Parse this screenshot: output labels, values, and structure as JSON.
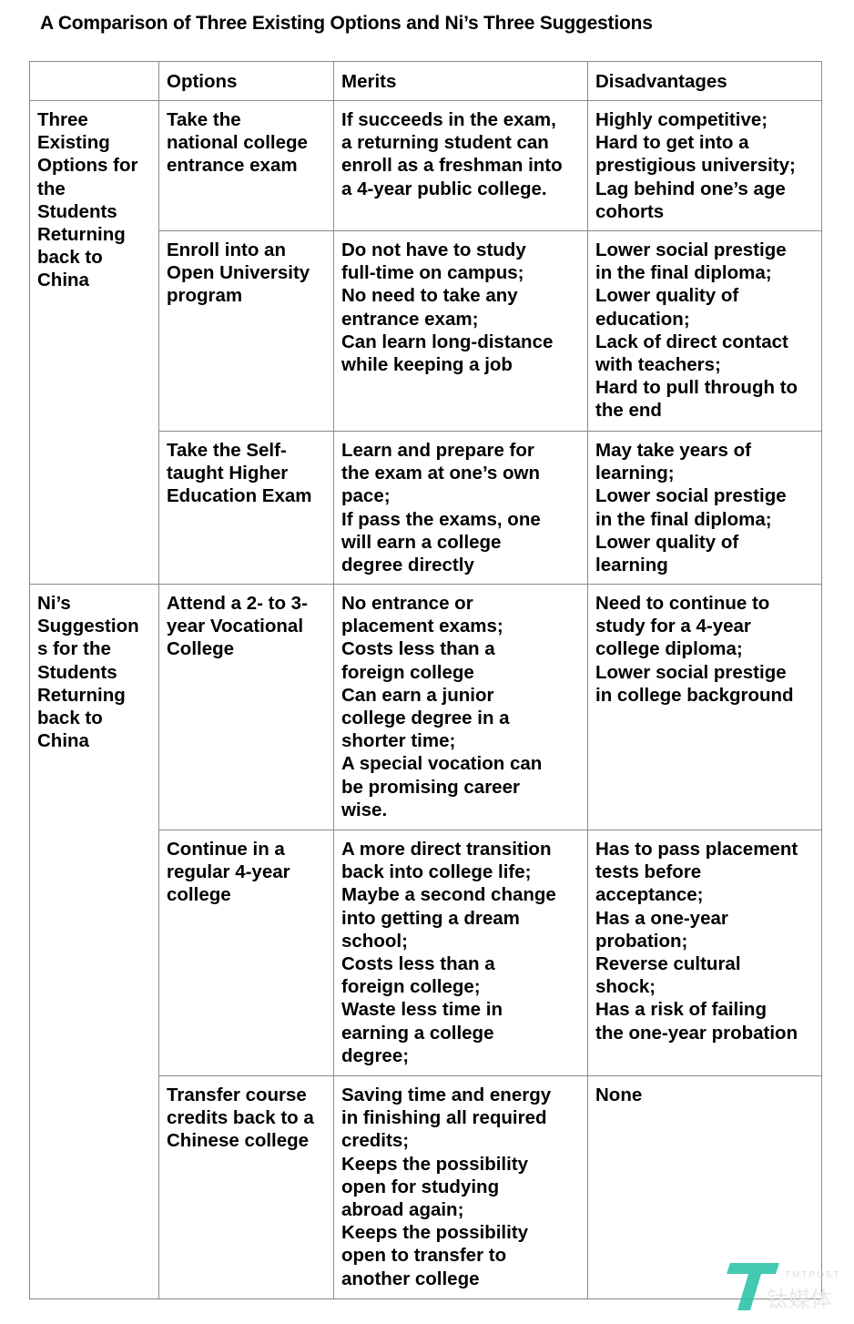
{
  "title": "A Comparison of Three Existing Options and Ni’s Three Suggestions",
  "headers": [
    "",
    "Options",
    "Merits",
    "Disadvantages"
  ],
  "groups": [
    {
      "label": [
        "Three",
        "Existing",
        "Options for",
        "the",
        "Students",
        "Returning",
        "back to",
        "China"
      ]
    },
    {
      "label": [
        "Ni’s",
        "Suggestion",
        "s for the",
        "Students",
        "Returning",
        "back to",
        "China"
      ]
    }
  ],
  "rows": [
    {
      "option": [
        "Take the",
        "national college",
        "entrance exam"
      ],
      "merits": [
        "If succeeds in the exam,",
        "a returning student can",
        "enroll as a freshman into",
        "a 4-year public college."
      ],
      "disadvantages": [
        "Highly competitive;",
        "Hard to get into a",
        "prestigious university;",
        "Lag behind one’s age",
        "cohorts"
      ]
    },
    {
      "option": [
        "Enroll into an",
        "Open University",
        "program"
      ],
      "merits": [
        "Do not have to study",
        "full-time on campus;",
        "No need to take any",
        "entrance exam;",
        "Can learn long-distance",
        "while keeping a job"
      ],
      "disadvantages": [
        "Lower social prestige",
        "in the final diploma;",
        "Lower quality of",
        "education;",
        "Lack of direct contact",
        "with teachers;",
        "Hard to pull through to",
        "the end"
      ]
    },
    {
      "option": [
        "Take the Self-",
        "taught Higher",
        "Education Exam"
      ],
      "merits": [
        "Learn and prepare for",
        "the exam at one’s own",
        "pace;",
        "If pass the exams, one",
        "will earn a college",
        "degree directly"
      ],
      "disadvantages": [
        "May take years of",
        "learning;",
        "Lower social prestige",
        "in the final diploma;",
        "Lower quality of",
        "learning"
      ]
    },
    {
      "option": [
        "Attend a 2- to 3-",
        "year Vocational",
        "College"
      ],
      "merits": [
        "No entrance or",
        "placement exams;",
        "Costs less than a",
        "foreign college",
        "Can earn a junior",
        "college degree in a",
        "shorter time;",
        "A special vocation can",
        "be promising career",
        "wise."
      ],
      "disadvantages": [
        "Need to continue to",
        "study for a 4-year",
        "college diploma;",
        "Lower social prestige",
        "in college background"
      ]
    },
    {
      "option": [
        "Continue in a",
        "regular 4-year",
        "college"
      ],
      "merits": [
        "A more direct transition",
        "back into college life;",
        "Maybe a second change",
        "into getting a dream",
        "school;",
        "Costs less than a",
        "foreign college;",
        "Waste less time in",
        "earning a college",
        "degree;"
      ],
      "disadvantages": [
        "Has to pass placement",
        "tests before",
        "acceptance;",
        "Has a one-year",
        "probation;",
        "Reverse cultural",
        "shock;",
        "Has a risk of failing",
        "the one-year probation"
      ]
    },
    {
      "option": [
        "Transfer course",
        "credits back to a",
        "Chinese college"
      ],
      "merits": [
        "Saving time and energy",
        "in  finishing all required",
        "credits;",
        "Keeps the possibility",
        "open for studying",
        "abroad again;",
        "Keeps the possibility",
        "open to transfer to",
        "another college"
      ],
      "disadvantages": [
        "None"
      ]
    }
  ],
  "watermark": {
    "text_en": "TMTPOST",
    "text_cn": "钛媒体",
    "color": "#2ec4a8"
  }
}
